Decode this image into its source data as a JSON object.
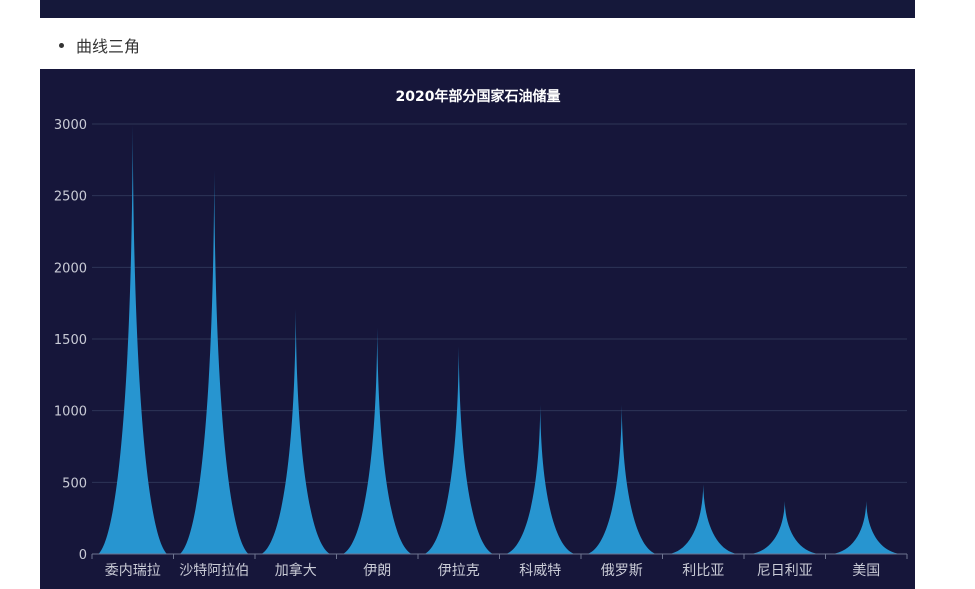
{
  "list_item": {
    "label": "曲线三角"
  },
  "chart_data": {
    "type": "bar",
    "bar_shape": "curved-triangle",
    "title": "2020年部分国家石油储量",
    "categories": [
      "委内瑞拉",
      "沙特阿拉伯",
      "加拿大",
      "伊朗",
      "伊拉克",
      "科威特",
      "俄罗斯",
      "利比亚",
      "尼日利亚",
      "美国"
    ],
    "values": [
      3000,
      2680,
      1710,
      1580,
      1450,
      1040,
      1040,
      485,
      370,
      370
    ],
    "ylim": [
      0,
      3000
    ],
    "yticks": [
      0,
      500,
      1000,
      1500,
      2000,
      2500,
      3000
    ],
    "grid": true,
    "colors": {
      "background": "#16163a",
      "bar": "#2795d0",
      "grid": "#2e3557",
      "text": "#c9cbd6",
      "title": "#ffffff",
      "axis": "#6e7490"
    }
  }
}
